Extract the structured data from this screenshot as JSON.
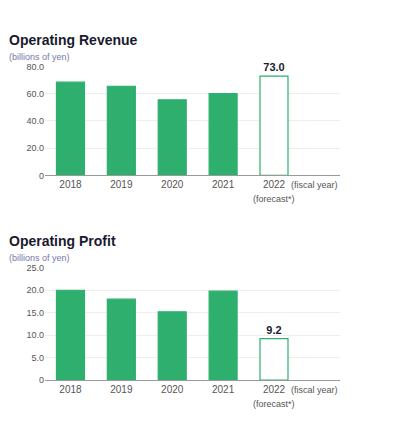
{
  "chart_data": [
    {
      "type": "bar",
      "title": "Operating Revenue",
      "ylabel": "(billions of yen)",
      "categories": [
        "2018",
        "2019",
        "2020",
        "2021",
        "2022"
      ],
      "values": [
        68.5,
        65.5,
        55.5,
        60.0,
        73.0
      ],
      "value_labels": [
        null,
        null,
        null,
        null,
        "73.0"
      ],
      "color": "#2eaf6e",
      "colors": [
        "#2eaf6e",
        "#2eaf6e",
        "#2eaf6e",
        "#2eaf6e",
        "#ffffff"
      ],
      "ylim": [
        0,
        80.0
      ],
      "yticks": [
        0,
        {
          "value": 20,
          "label": "20.0"
        },
        {
          "value": 40,
          "label": "40.0"
        },
        {
          "value": 60,
          "label": "60.0"
        },
        {
          "value": 80,
          "label": "80.0"
        }
      ],
      "grid": true,
      "annotations": [
        {
          "text": "(forecast*)",
          "x": "2022"
        },
        {
          "text": "(fiscal year)",
          "x": "2022"
        }
      ]
    },
    {
      "type": "bar",
      "title": "Operating Profit",
      "ylabel": "(billions of yen)",
      "categories": [
        "2018",
        "2019",
        "2020",
        "2021",
        "2022"
      ],
      "values": [
        20.0,
        18.0,
        15.2,
        19.8,
        9.2
      ],
      "value_labels": [
        null,
        null,
        null,
        null,
        "9.2"
      ],
      "color": "#2eaf6e",
      "colors": [
        "#2eaf6e",
        "#2eaf6e",
        "#2eaf6e",
        "#2eaf6e",
        "#ffffff"
      ],
      "ylim": [
        0,
        25.0
      ],
      "yticks": [
        0,
        {
          "value": 5,
          "label": "5.0"
        },
        {
          "value": 10,
          "label": "10.0"
        },
        {
          "value": 15,
          "label": "15.0"
        },
        {
          "value": 20,
          "label": "20.0"
        },
        {
          "value": 25,
          "label": "25.0"
        }
      ],
      "grid": true,
      "annotations": [
        {
          "text": "(forecast*)",
          "x": "2022"
        },
        {
          "text": "(fiscal year)",
          "x": "2022"
        }
      ]
    }
  ]
}
